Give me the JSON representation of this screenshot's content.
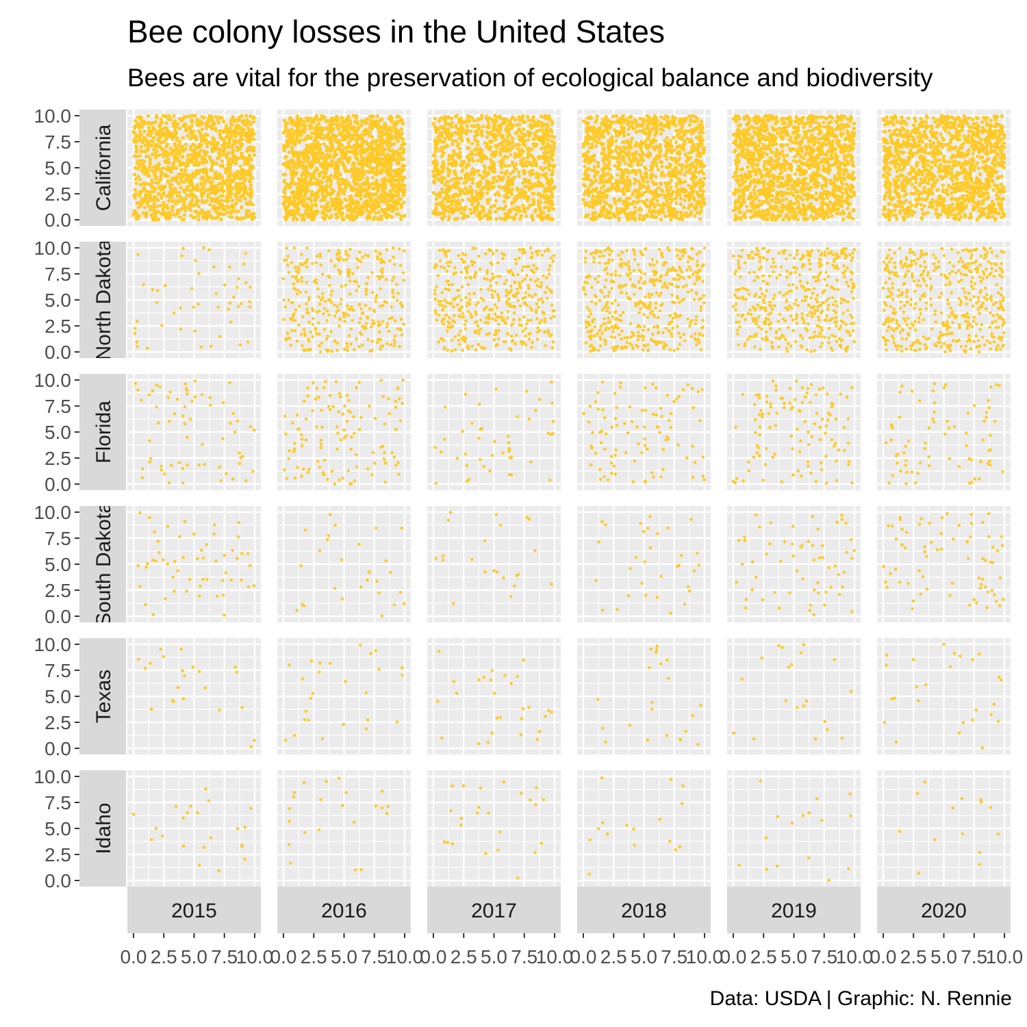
{
  "chart_data": {
    "type": "scatter",
    "title": "Bee colony losses in the United States",
    "subtitle": "Bees are vital for the preservation of ecological balance and biodiversity",
    "caption": "Data: USDA | Graphic: N. Rennie",
    "xlabel": "",
    "ylabel": "",
    "xlim": [
      0,
      10
    ],
    "ylim": [
      0,
      10
    ],
    "x_ticks": [
      "0.0",
      "2.5",
      "5.0",
      "7.5",
      "10.0"
    ],
    "y_ticks": [
      "0.0",
      "2.5",
      "5.0",
      "7.5",
      "10.0"
    ],
    "facet_columns": [
      "2015",
      "2016",
      "2017",
      "2018",
      "2019",
      "2020"
    ],
    "facet_rows": [
      "California",
      "North Dakota",
      "Florida",
      "South Dakota",
      "Texas",
      "Idaho"
    ],
    "point_color": "#FFCA28",
    "panel_background": "#EBEBEB",
    "strip_background": "#D9D9D9",
    "grid": true,
    "point_counts": [
      [
        1250,
        1650,
        1150,
        1200,
        1400,
        1250
      ],
      [
        50,
        330,
        420,
        470,
        430,
        470
      ],
      [
        65,
        120,
        45,
        95,
        115,
        75
      ],
      [
        55,
        28,
        22,
        32,
        60,
        70
      ],
      [
        22,
        26,
        28,
        22,
        20,
        26
      ],
      [
        22,
        22,
        24,
        16,
        16,
        14
      ]
    ]
  }
}
